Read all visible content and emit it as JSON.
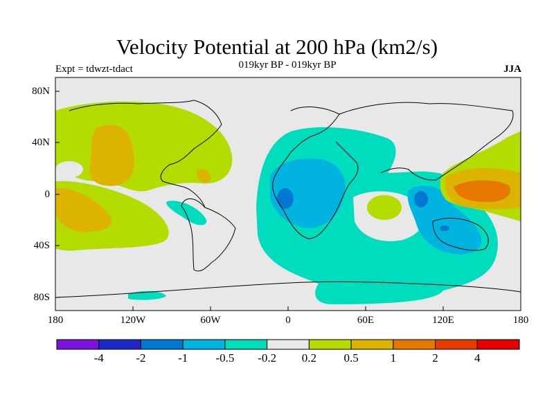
{
  "title": "Velocity Potential at 200 hPa (km2/s)",
  "subtitle": "019kyr BP - 019kyr BP",
  "experiment": "Expt = tdwzt-tdact",
  "season": "JJA",
  "map": {
    "lat_labels": [
      "80N",
      "40N",
      "0",
      "40S",
      "80S"
    ],
    "lon_labels": [
      "180",
      "120W",
      "60W",
      "0",
      "60E",
      "120E",
      "180"
    ],
    "background_color": "#e8e8e8"
  },
  "colorbar": {
    "colors": [
      "#7a14dc",
      "#1e28c8",
      "#0078d2",
      "#00b4e0",
      "#00dcbe",
      "#e8e8e8",
      "#b4dc00",
      "#dcb400",
      "#e67800",
      "#e63c00",
      "#e60000"
    ],
    "labels": [
      "-4",
      "-2",
      "-1",
      "-0.5",
      "-0.2",
      "0.2",
      "0.5",
      "1",
      "2",
      "4"
    ]
  }
}
